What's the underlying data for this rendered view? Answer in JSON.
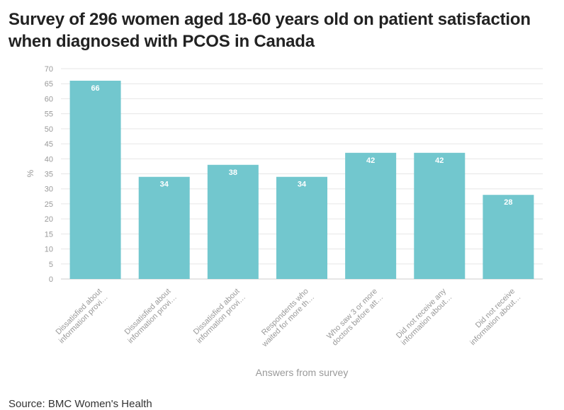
{
  "title": "Survey of 296 women aged 18-60 years old on patient satisfaction when diagnosed with PCOS in Canada",
  "source": "Source: BMC Women's Health",
  "colors": {
    "bar": "#72c7ce",
    "grid": "#e6e6e6",
    "tick": "#999999",
    "value_label": "#ffffff",
    "axis_title": "#9a9a9a"
  },
  "chart_data": {
    "type": "bar",
    "title": "Survey of 296 women aged 18-60 years old on patient satisfaction when diagnosed with PCOS in Canada",
    "xlabel": "Answers from survey",
    "ylabel": "%",
    "ylim": [
      0,
      70
    ],
    "yticks": [
      0,
      5,
      10,
      15,
      20,
      25,
      30,
      35,
      40,
      45,
      50,
      55,
      60,
      65,
      70
    ],
    "grid": true,
    "categories": [
      [
        "Dissatisfied about",
        "information provi…"
      ],
      [
        "Dissatisfied about",
        "information provi…"
      ],
      [
        "Dissatisfied about",
        "information provi…"
      ],
      [
        "Respondents who",
        "waited for more th…"
      ],
      [
        "Who saw 3 or more",
        "doctors before att…"
      ],
      [
        "Did not receive any",
        "information about…"
      ],
      [
        "Did not receive",
        "information about…"
      ]
    ],
    "values": [
      66,
      34,
      38,
      34,
      42,
      42,
      28
    ],
    "data_labels": [
      "66",
      "34",
      "38",
      "34",
      "42",
      "42",
      "28"
    ]
  }
}
